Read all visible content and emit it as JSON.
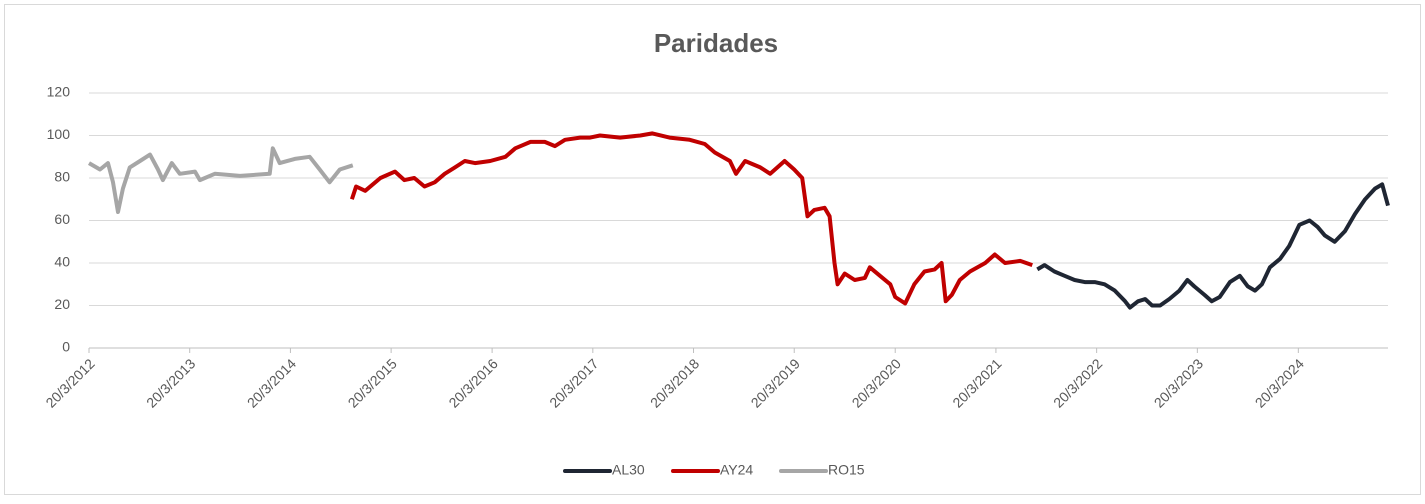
{
  "chart_data": {
    "type": "line",
    "title": "Paridades",
    "xlim": [
      "2012-03-20",
      "2025-02-08"
    ],
    "xticks": [
      {
        "value": "2012-03-20",
        "label": "20/3/2012"
      },
      {
        "value": "2013-03-20",
        "label": "20/3/2013"
      },
      {
        "value": "2014-03-20",
        "label": "20/3/2014"
      },
      {
        "value": "2015-03-20",
        "label": "20/3/2015"
      },
      {
        "value": "2016-03-20",
        "label": "20/3/2016"
      },
      {
        "value": "2017-03-20",
        "label": "20/3/2017"
      },
      {
        "value": "2018-03-20",
        "label": "20/3/2018"
      },
      {
        "value": "2019-03-20",
        "label": "20/3/2019"
      },
      {
        "value": "2020-03-20",
        "label": "20/3/2020"
      },
      {
        "value": "2021-03-20",
        "label": "20/3/2021"
      },
      {
        "value": "2022-03-20",
        "label": "20/3/2022"
      },
      {
        "value": "2023-03-20",
        "label": "20/3/2023"
      },
      {
        "value": "2024-03-20",
        "label": "20/3/2024"
      }
    ],
    "ylim": [
      0,
      120
    ],
    "yticks": [
      0,
      20,
      40,
      60,
      80,
      100,
      120
    ],
    "grid": true,
    "legend": "bottom",
    "series": [
      {
        "name": "AL30",
        "color": "#1f2633",
        "x": [
          "2021-08-17",
          "2021-09-12",
          "2021-10-18",
          "2021-11-24",
          "2021-12-30",
          "2022-02-05",
          "2022-03-13",
          "2022-04-18",
          "2022-05-25",
          "2022-07-01",
          "2022-07-19",
          "2022-08-17",
          "2022-09-12",
          "2022-10-07",
          "2022-11-05",
          "2022-12-08",
          "2023-01-14",
          "2023-02-12",
          "2023-03-09",
          "2023-04-15",
          "2023-05-11",
          "2023-06-09",
          "2023-07-16",
          "2023-08-21",
          "2023-09-19",
          "2023-10-15",
          "2023-11-09",
          "2023-12-08",
          "2024-01-14",
          "2024-02-16",
          "2024-03-24",
          "2024-04-30",
          "2024-05-29",
          "2024-06-24",
          "2024-07-30",
          "2024-09-05",
          "2024-10-11",
          "2024-11-17",
          "2024-12-23",
          "2025-01-18",
          "2025-02-08"
        ],
        "values": [
          37,
          39,
          36,
          34,
          32,
          31,
          31,
          30,
          27,
          22,
          19,
          22,
          23,
          20,
          20,
          23,
          27,
          32,
          29,
          25,
          22,
          24,
          31,
          34,
          29,
          27,
          30,
          38,
          42,
          48,
          58,
          60,
          57,
          53,
          50,
          55,
          63,
          70,
          75,
          77,
          67
        ]
      },
      {
        "name": "AY24",
        "color": "#c00000",
        "x": [
          "2014-10-29",
          "2014-11-13",
          "2014-12-16",
          "2015-02-09",
          "2015-04-03",
          "2015-05-07",
          "2015-06-12",
          "2015-07-19",
          "2015-08-25",
          "2015-09-30",
          "2015-11-06",
          "2015-12-12",
          "2016-01-18",
          "2016-03-13",
          "2016-05-07",
          "2016-06-12",
          "2016-08-06",
          "2016-09-27",
          "2016-11-03",
          "2016-12-09",
          "2017-02-02",
          "2017-03-10",
          "2017-04-15",
          "2017-06-27",
          "2017-09-08",
          "2017-10-22",
          "2017-12-23",
          "2018-03-06",
          "2018-04-30",
          "2018-06-05",
          "2018-07-30",
          "2018-08-21",
          "2018-09-23",
          "2018-11-17",
          "2018-12-23",
          "2019-02-13",
          "2019-03-20",
          "2019-04-18",
          "2019-05-07",
          "2019-06-01",
          "2019-07-08",
          "2019-07-26",
          "2019-08-13",
          "2019-08-24",
          "2019-09-19",
          "2019-10-25",
          "2019-12-01",
          "2019-12-19",
          "2020-01-25",
          "2020-03-02",
          "2020-03-20",
          "2020-04-25",
          "2020-05-28",
          "2020-07-04",
          "2020-08-10",
          "2020-09-04",
          "2020-09-19",
          "2020-10-11",
          "2020-11-09",
          "2020-12-16",
          "2021-02-09",
          "2021-03-16",
          "2021-04-22",
          "2021-06-16",
          "2021-07-30"
        ],
        "values": [
          70,
          76,
          74,
          80,
          83,
          79,
          80,
          76,
          78,
          82,
          85,
          88,
          87,
          88,
          90,
          94,
          97,
          97,
          95,
          98,
          99,
          99,
          100,
          99,
          100,
          101,
          99,
          98,
          96,
          92,
          88,
          82,
          88,
          85,
          82,
          88,
          84,
          80,
          62,
          65,
          66,
          62,
          40,
          30,
          35,
          32,
          33,
          38,
          34,
          30,
          24,
          21,
          30,
          36,
          37,
          40,
          22,
          25,
          32,
          36,
          40,
          44,
          40,
          41,
          39
        ]
      },
      {
        "name": "RO15",
        "color": "#a6a6a6",
        "x": [
          "2012-03-20",
          "2012-04-29",
          "2012-05-28",
          "2012-06-15",
          "2012-07-03",
          "2012-07-21",
          "2012-08-15",
          "2012-09-21",
          "2012-10-27",
          "2012-11-25",
          "2012-12-13",
          "2013-01-14",
          "2013-02-12",
          "2013-04-08",
          "2013-04-26",
          "2013-06-19",
          "2013-09-18",
          "2014-01-04",
          "2014-01-15",
          "2014-02-09",
          "2014-04-05",
          "2014-05-29",
          "2014-07-04",
          "2014-08-09",
          "2014-09-15",
          "2014-11-01"
        ],
        "values": [
          87,
          84,
          87,
          78,
          64,
          75,
          85,
          88,
          91,
          84,
          79,
          87,
          82,
          83,
          79,
          82,
          81,
          82,
          94,
          87,
          89,
          90,
          84,
          78,
          84,
          86
        ]
      }
    ]
  }
}
